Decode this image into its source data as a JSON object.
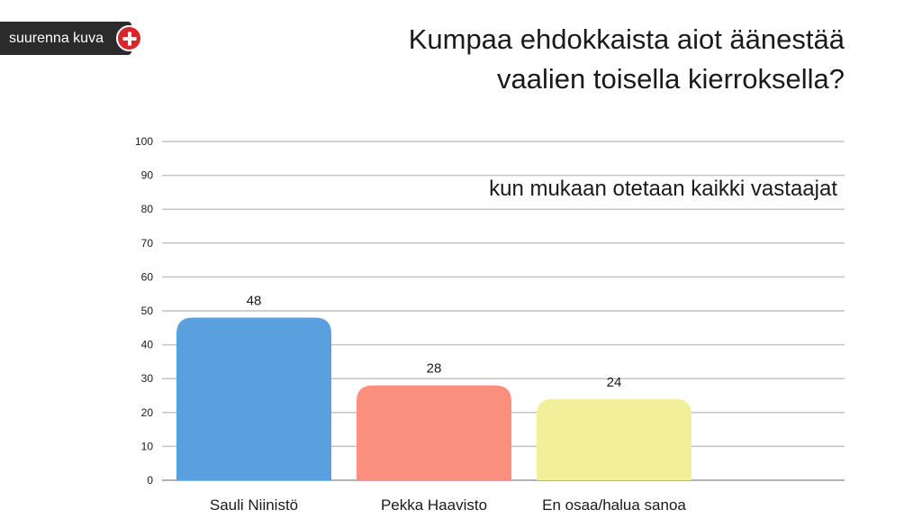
{
  "zoom_button": {
    "label": "suurenna kuva",
    "icon": "plus-icon"
  },
  "chart_data": {
    "type": "bar",
    "title": "Kumpaa ehdokkaista aiot äänestää vaalien toisella kierroksella?",
    "title_lines": [
      "Kumpaa ehdokkaista aiot äänestää",
      "vaalien toisella kierroksella?"
    ],
    "subtitle": "kun mukaan otetaan kaikki vastaajat",
    "categories": [
      "Sauli Niinistö",
      "Pekka Haavisto",
      "En osaa/halua sanoa"
    ],
    "values": [
      48,
      28,
      24
    ],
    "colors": [
      "#5aa0de",
      "#fb8f7e",
      "#f2ef9a"
    ],
    "ylim": [
      0,
      100
    ],
    "yticks": [
      0,
      10,
      20,
      30,
      40,
      50,
      60,
      70,
      80,
      90,
      100
    ],
    "grid": true,
    "xlabel": "",
    "ylabel": ""
  }
}
